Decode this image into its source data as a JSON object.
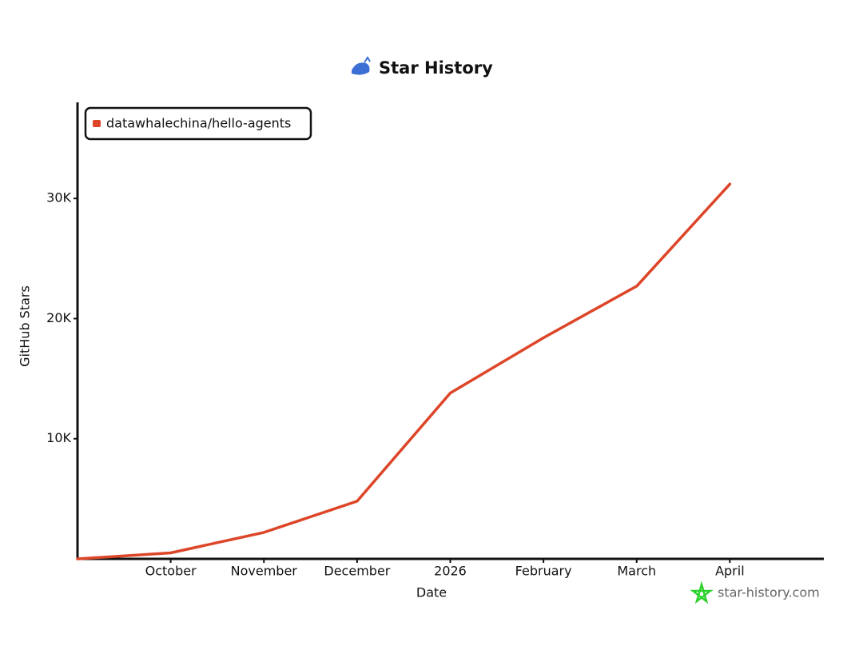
{
  "chart_data": {
    "type": "line",
    "title": "Star History",
    "x_label": "Date",
    "y_label": "GitHub Stars",
    "x": [
      "2025-09",
      "2025-10",
      "2025-11",
      "2025-12",
      "2026-01",
      "2026-02",
      "2026-03",
      "2026-04"
    ],
    "series": [
      {
        "name": "datawhalechina/hello-agents",
        "color": "#dd4528",
        "values": [
          0,
          500,
          2200,
          4800,
          13800,
          18400,
          22700,
          31200
        ]
      }
    ],
    "xlim": [
      "2025-09",
      "2026-05"
    ],
    "xticks": [
      {
        "value": "2025-10",
        "label": "October"
      },
      {
        "value": "2025-11",
        "label": "November"
      },
      {
        "value": "2025-12",
        "label": "December"
      },
      {
        "value": "2026-01",
        "label": "2026"
      },
      {
        "value": "2026-02",
        "label": "February"
      },
      {
        "value": "2026-03",
        "label": "March"
      },
      {
        "value": "2026-04",
        "label": "April"
      }
    ],
    "ylim": [
      0,
      38000
    ],
    "yticks": [
      {
        "value": 10000,
        "label": "10K"
      },
      {
        "value": 20000,
        "label": "20K"
      },
      {
        "value": 30000,
        "label": "30K"
      }
    ],
    "legend": "upper-left",
    "watermark": "star-history.com"
  }
}
